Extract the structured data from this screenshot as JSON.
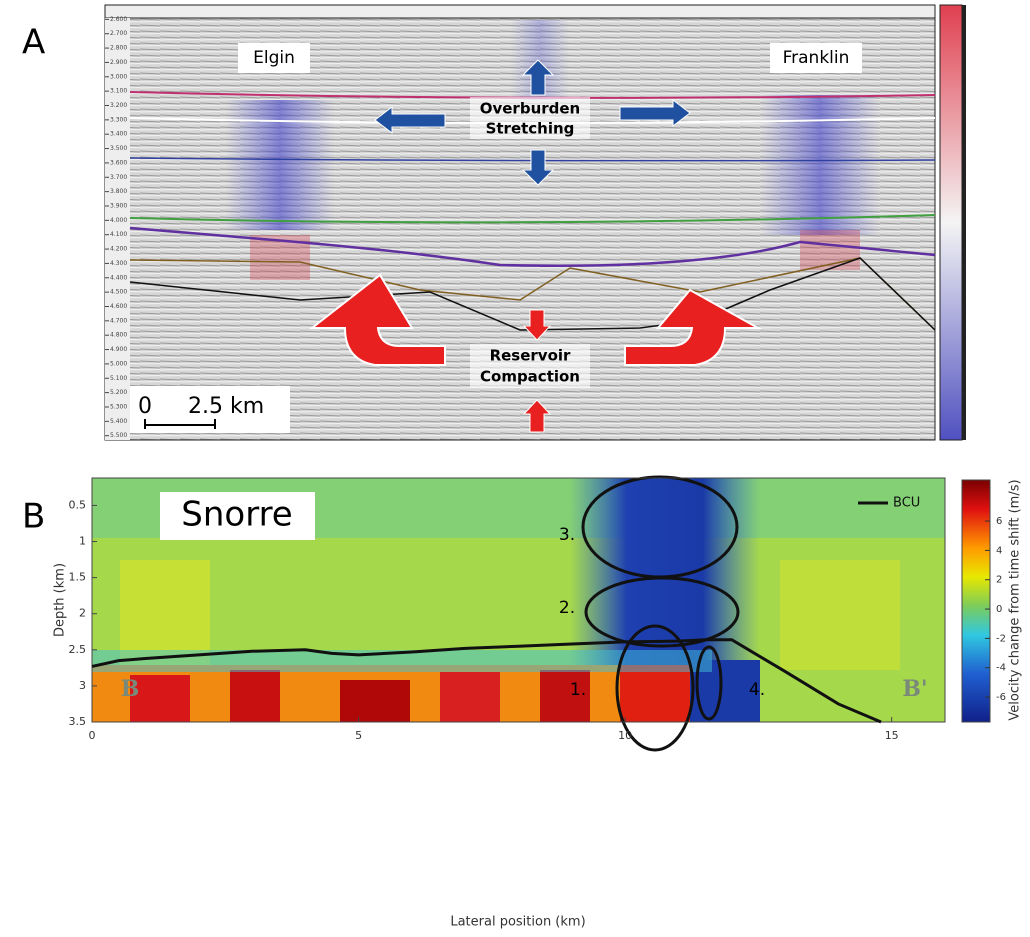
{
  "chart_data": [
    {
      "type": "image",
      "panel_label": "A",
      "annotations": {
        "left_field": "Elgin",
        "right_field": "Franklin",
        "overburden": [
          "Overburden",
          "Stretching"
        ],
        "reservoir": [
          "Reservoir",
          "Compaction"
        ]
      },
      "scale_bar": [
        "0",
        "2.5 km"
      ],
      "y_inverted": true,
      "ylim": [
        2.5,
        5.53
      ],
      "yticks": [
        {
          "value": 2.6,
          "label": "2.600"
        },
        {
          "value": 2.7,
          "label": "2.700"
        },
        {
          "value": 2.8,
          "label": "2.800"
        },
        {
          "value": 2.9,
          "label": "2.900"
        },
        {
          "value": 3.0,
          "label": "3.000"
        },
        {
          "value": 3.1,
          "label": "3.100"
        },
        {
          "value": 3.2,
          "label": "3.200"
        },
        {
          "value": 3.3,
          "label": "3.300"
        },
        {
          "value": 3.4,
          "label": "3.400"
        },
        {
          "value": 3.5,
          "label": "3.500"
        },
        {
          "value": 3.6,
          "label": "3.600"
        },
        {
          "value": 3.7,
          "label": "3.700"
        },
        {
          "value": 3.8,
          "label": "3.800"
        },
        {
          "value": 3.9,
          "label": "3.900"
        },
        {
          "value": 4.0,
          "label": "4.000"
        },
        {
          "value": 4.1,
          "label": "4.100"
        },
        {
          "value": 4.2,
          "label": "4.200"
        },
        {
          "value": 4.3,
          "label": "4.300"
        },
        {
          "value": 4.4,
          "label": "4.400"
        },
        {
          "value": 4.5,
          "label": "4.500"
        },
        {
          "value": 4.6,
          "label": "4.600"
        },
        {
          "value": 4.7,
          "label": "4.700"
        },
        {
          "value": 4.8,
          "label": "4.800"
        },
        {
          "value": 4.9,
          "label": "4.900"
        },
        {
          "value": 5.0,
          "label": "5.000"
        },
        {
          "value": 5.1,
          "label": "5.100"
        },
        {
          "value": 5.2,
          "label": "5.200"
        },
        {
          "value": 5.3,
          "label": "5.300"
        },
        {
          "value": 5.4,
          "label": "5.400"
        },
        {
          "value": 5.5,
          "label": "5.500"
        }
      ]
    },
    {
      "type": "heatmap",
      "panel_label": "B",
      "title": "Snorre",
      "xlabel": "Lateral position (km)",
      "ylabel": "Depth (km)",
      "xlim": [
        0,
        16
      ],
      "xticks": [
        0,
        5,
        10,
        15
      ],
      "y_inverted": true,
      "ylim": [
        0.12,
        3.5
      ],
      "yticks": [
        0.5,
        1,
        1.5,
        2,
        2.5,
        3,
        3.5
      ],
      "colorbar": {
        "label": "Velocity change from time shift (m/s)",
        "lim": [
          -7.7,
          8.8
        ],
        "ticks": [
          -6,
          -4,
          -2,
          0,
          2,
          4,
          6
        ]
      },
      "series": [
        {
          "name": "BCU",
          "color": "#111111",
          "x": [
            0,
            0.5,
            1,
            2,
            3,
            4,
            4.5,
            5,
            6,
            7,
            8,
            9,
            10,
            11,
            11.5,
            12,
            13,
            14,
            14.8
          ],
          "y": [
            2.73,
            2.65,
            2.62,
            2.57,
            2.52,
            2.5,
            2.55,
            2.57,
            2.53,
            2.48,
            2.45,
            2.42,
            2.39,
            2.38,
            2.36,
            2.36,
            2.8,
            3.25,
            3.5
          ]
        }
      ],
      "annotations": [
        "3.",
        "2.",
        "1.",
        "4."
      ],
      "section_ends": [
        "B",
        "B'"
      ]
    }
  ]
}
